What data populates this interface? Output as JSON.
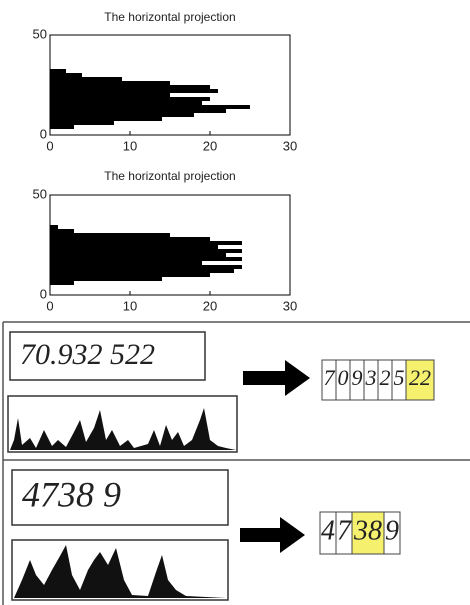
{
  "chart_data": [
    {
      "type": "bar",
      "orientation": "horizontal",
      "title": "The horizontal projection",
      "y": [
        4,
        6,
        8,
        10,
        12,
        14,
        16,
        18,
        20,
        22,
        24,
        26,
        28,
        30,
        32
      ],
      "values": [
        3,
        8,
        14,
        18,
        22,
        25,
        19,
        20,
        15,
        21,
        20,
        15,
        9,
        4,
        2
      ],
      "color": "#000000",
      "xlim": [
        0,
        30
      ],
      "xticks": [
        0,
        10,
        20,
        30
      ],
      "ylim": [
        0,
        50
      ],
      "yticks": [
        0,
        50
      ]
    },
    {
      "type": "bar",
      "orientation": "horizontal",
      "title": "The horizontal projection",
      "y": [
        6,
        8,
        10,
        12,
        14,
        16,
        18,
        20,
        22,
        24,
        26,
        28,
        30,
        32,
        34
      ],
      "values": [
        3,
        14,
        20,
        23,
        24,
        19,
        24,
        22,
        24,
        21,
        24,
        20,
        15,
        3,
        1
      ],
      "color": "#000000",
      "xlim": [
        0,
        30
      ],
      "xticks": [
        0,
        10,
        20,
        30
      ],
      "ylim": [
        0,
        50
      ],
      "yticks": [
        0,
        50
      ]
    }
  ],
  "panels": [
    {
      "number": "70.932 522",
      "segments": [
        {
          "text": "7"
        },
        {
          "text": "0"
        },
        {
          "text": "9"
        },
        {
          "text": "3"
        },
        {
          "text": "2"
        },
        {
          "text": "5"
        },
        {
          "text": "22",
          "highlight": true
        }
      ]
    },
    {
      "number": "4738 9",
      "segments": [
        {
          "text": "4"
        },
        {
          "text": "7"
        },
        {
          "text": "38",
          "highlight": true
        },
        {
          "text": "9"
        }
      ]
    }
  ]
}
